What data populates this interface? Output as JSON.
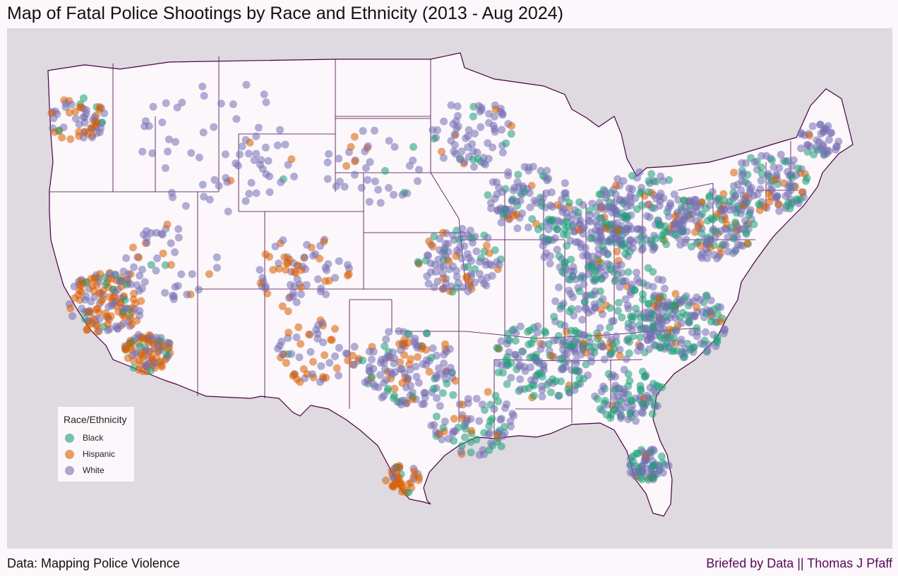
{
  "title": "Map of Fatal Police Shootings by Race and Ethnicity (2013 - Aug 2024)",
  "caption_left": "Data: Mapping Police Violence",
  "caption_right": "Briefed by Data || Thomas J Pfaff",
  "colors": {
    "background": "#dedadf",
    "land": "#fbf7fb",
    "border": "#4b0046",
    "black": "#1b9e77",
    "hispanic": "#d95f02",
    "white": "#7570b3"
  },
  "legend": {
    "title": "Race/Ethnicity",
    "items": [
      {
        "label": "Black",
        "color": "#1b9e77"
      },
      {
        "label": "Hispanic",
        "color": "#d95f02"
      },
      {
        "label": "White",
        "color": "#7570b3"
      }
    ]
  }
}
